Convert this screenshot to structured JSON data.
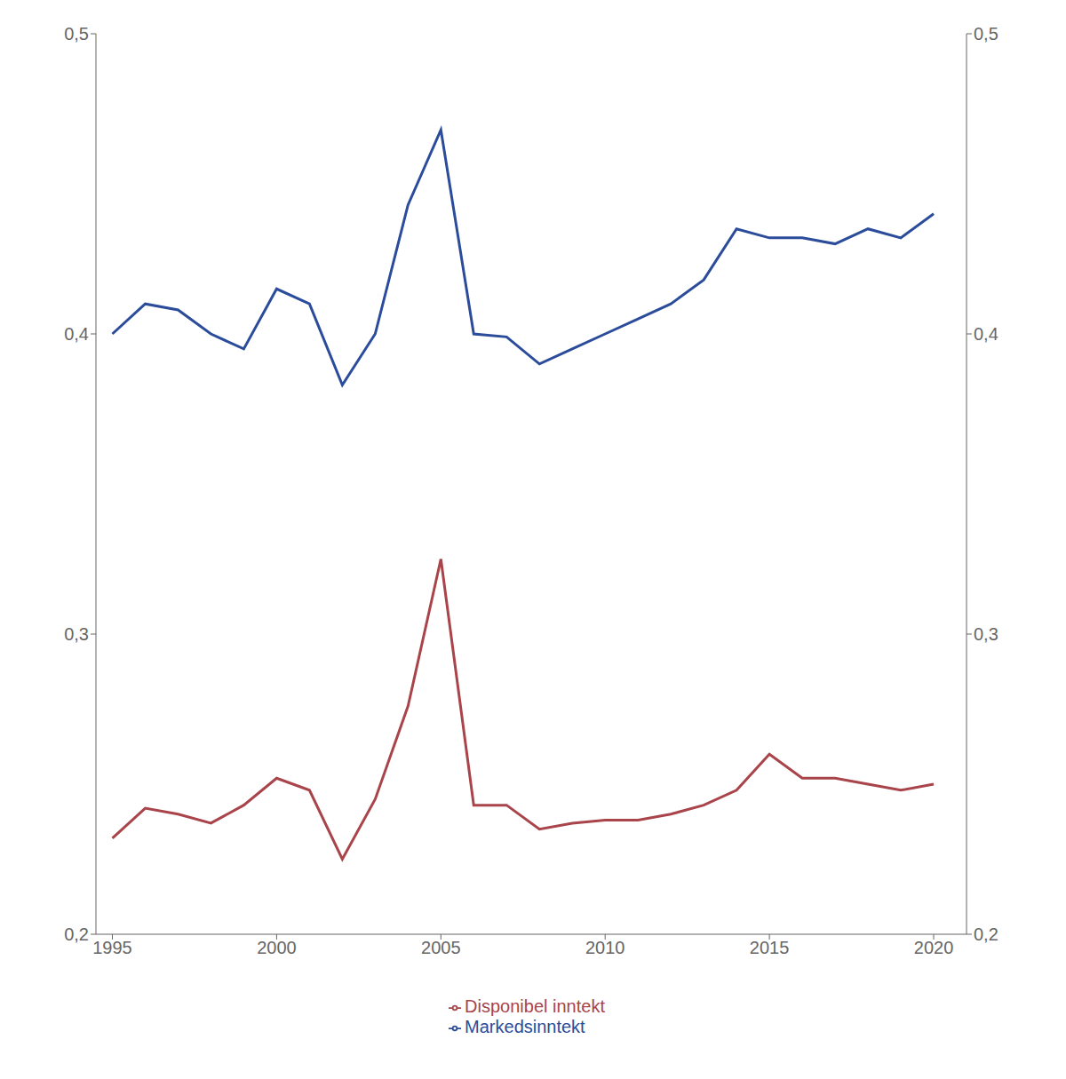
{
  "chart_data": {
    "type": "line",
    "x": [
      1995,
      1996,
      1997,
      1998,
      1999,
      2000,
      2001,
      2002,
      2003,
      2004,
      2005,
      2006,
      2007,
      2008,
      2009,
      2010,
      2011,
      2012,
      2013,
      2014,
      2015,
      2016,
      2017,
      2018,
      2019,
      2020
    ],
    "series": [
      {
        "name": "Markedsinntekt",
        "color": "#2B4C9B",
        "values": [
          0.4,
          0.41,
          0.408,
          0.4,
          0.395,
          0.415,
          0.41,
          0.383,
          0.4,
          0.443,
          0.468,
          0.4,
          0.399,
          0.39,
          0.395,
          0.4,
          0.405,
          0.41,
          0.418,
          0.435,
          0.432,
          0.432,
          0.43,
          0.435,
          0.432,
          0.44
        ]
      },
      {
        "name": "Disponibel inntekt",
        "color": "#A8444A",
        "values": [
          0.232,
          0.242,
          0.24,
          0.237,
          0.243,
          0.252,
          0.248,
          0.225,
          0.245,
          0.276,
          0.325,
          0.243,
          0.243,
          0.235,
          0.237,
          0.238,
          0.238,
          0.24,
          0.243,
          0.248,
          0.26,
          0.252,
          0.252,
          0.25,
          0.248,
          0.25
        ]
      }
    ],
    "xlim": [
      1994.5,
      2021.0
    ],
    "xticks": [
      1995,
      2000,
      2005,
      2010,
      2015,
      2020
    ],
    "ylim": [
      0.2,
      0.5
    ],
    "yticks": [
      {
        "value": 0.2,
        "label": "0,2"
      },
      {
        "value": 0.3,
        "label": "0,3"
      },
      {
        "value": 0.4,
        "label": "0,4"
      },
      {
        "value": 0.5,
        "label": "0,5"
      }
    ],
    "y2lim": [
      0.2,
      0.5
    ],
    "y2ticks": [
      {
        "value": 0.2,
        "label": "0,2"
      },
      {
        "value": 0.3,
        "label": "0,3"
      },
      {
        "value": 0.4,
        "label": "0,4"
      },
      {
        "value": 0.5,
        "label": "0,5"
      }
    ],
    "grid": false,
    "legend": "bottom"
  }
}
